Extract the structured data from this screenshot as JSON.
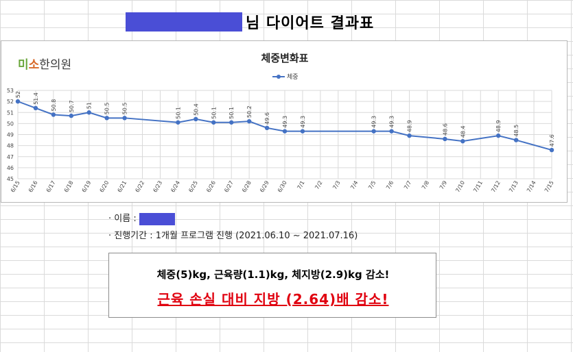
{
  "header": {
    "title_suffix": "님 다이어트 결과표"
  },
  "logo": {
    "part1": "미",
    "part2": "소",
    "part3": "한의원"
  },
  "colors": {
    "series": "#4472c4",
    "redaction": "#4a4ed6",
    "highlight": "#e0000f"
  },
  "chart_data": {
    "type": "line",
    "title": "체중변화표",
    "xlabel": "",
    "ylabel": "",
    "ylim": [
      45,
      53
    ],
    "yticks": [
      45,
      46,
      47,
      48,
      49,
      50,
      51,
      52,
      53
    ],
    "grid": true,
    "legend": "top-center",
    "categories": [
      "6/15",
      "6/16",
      "6/17",
      "6/18",
      "6/19",
      "6/20",
      "6/21",
      "6/22",
      "6/23",
      "6/24",
      "6/25",
      "6/26",
      "6/27",
      "6/28",
      "6/29",
      "6/30",
      "7/1",
      "7/2",
      "7/3",
      "7/4",
      "7/5",
      "7/6",
      "7/7",
      "7/8",
      "7/9",
      "7/10",
      "7/11",
      "7/12",
      "7/13",
      "7/14",
      "7/15"
    ],
    "series": [
      {
        "name": "체중",
        "values": [
          52,
          51.4,
          50.8,
          50.7,
          51,
          50.5,
          50.5,
          null,
          null,
          50.1,
          50.4,
          50.1,
          50.1,
          50.2,
          49.6,
          49.3,
          49.3,
          null,
          null,
          null,
          49.3,
          49.3,
          48.9,
          null,
          48.6,
          48.4,
          null,
          48.9,
          48.5,
          null,
          47.6
        ]
      }
    ]
  },
  "info": {
    "name_label": "· 이름 :",
    "period": "· 진행기간 : 1개월 프로그램 진행 (2021.06.10 ~ 2021.07.16)"
  },
  "summary": {
    "line1": "체중(5)kg, 근육량(1.1)kg, 체지방(2.9)kg 감소!",
    "line2": "근육 손실 대비 지방 (2.64)배 감소!"
  }
}
